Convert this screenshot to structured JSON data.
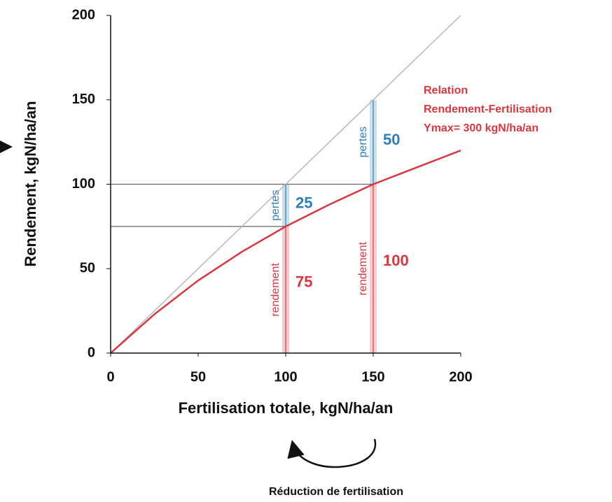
{
  "chart_data": {
    "type": "line",
    "xlabel": "Fertilisation totale, kgN/ha/an",
    "ylabel": "Rendement, kgN/ha/an",
    "xlim": [
      0,
      200
    ],
    "ylim": [
      0,
      200
    ],
    "xticks": [
      0,
      50,
      100,
      150,
      200
    ],
    "yticks": [
      0,
      50,
      100,
      150,
      200
    ],
    "lines": [
      {
        "color": "#b8b8b8",
        "x": [
          0,
          200
        ],
        "values": [
          0,
          200
        ]
      },
      {
        "color": "#d9363e",
        "x": [
          0,
          25,
          50,
          75,
          100,
          125,
          150,
          175,
          200
        ],
        "values": [
          0,
          23,
          43,
          60,
          75,
          88,
          100,
          110,
          120
        ]
      }
    ],
    "hlines": [
      {
        "value": 100,
        "xmax": 150
      },
      {
        "value": 75,
        "xmax": 100
      }
    ],
    "bars": {
      "x": [
        100,
        150
      ],
      "rendement": {
        "label": "rendement",
        "color": "#d9363e",
        "values": [
          75,
          100
        ]
      },
      "pertes": {
        "label": "pertes",
        "color": "#2e7fb8",
        "values": [
          25,
          50
        ]
      }
    },
    "annotation": [
      "Relation",
      "Rendement-Fertilisation",
      "Ymax= 300 kgN/ha/an"
    ],
    "note": "Réduction de fertilisation"
  }
}
